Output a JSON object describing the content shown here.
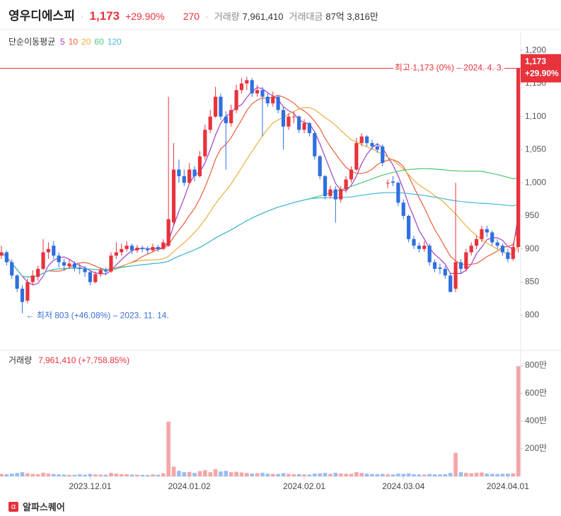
{
  "chart_data": {
    "type": "candlestick",
    "name": "영우디에스피",
    "price": "1,173",
    "change_pct": "+29.90%",
    "change": "270",
    "volume_label": "거래량",
    "volume_text": "7,961,410",
    "value_label": "거래대금",
    "value_text": "87억 3,816만",
    "ma_label": "단순이동평균",
    "ma_periods": [
      5,
      10,
      20,
      60,
      120
    ],
    "ma_colors": [
      "#a040c8",
      "#e8603c",
      "#e8b040",
      "#50c878",
      "#4ab8d8"
    ],
    "up_color": "#e8323c",
    "down_color": "#2f6fe0",
    "up_volume_color": "#f4a5a8",
    "down_volume_color": "#9bbcf2",
    "categories": [
      null,
      null,
      null,
      null,
      null,
      null,
      null,
      null,
      null,
      null,
      null,
      null,
      null,
      null,
      null,
      null,
      null,
      "2023.12.01",
      null,
      null,
      null,
      null,
      null,
      null,
      null,
      null,
      null,
      null,
      null,
      null,
      null,
      null,
      null,
      null,
      null,
      null,
      "2024.01.02",
      null,
      null,
      null,
      null,
      null,
      null,
      null,
      null,
      null,
      null,
      null,
      null,
      null,
      null,
      null,
      null,
      null,
      null,
      null,
      null,
      null,
      "2024.02.01",
      null,
      null,
      null,
      null,
      null,
      null,
      null,
      null,
      null,
      null,
      null,
      null,
      null,
      null,
      null,
      null,
      null,
      null,
      "2024.03.04",
      null,
      null,
      null,
      null,
      null,
      null,
      null,
      null,
      null,
      null,
      null,
      null,
      null,
      null,
      null,
      null,
      null,
      null,
      null,
      "2024.04.01",
      null,
      null
    ],
    "ohlc": [
      [
        890,
        905,
        885,
        895
      ],
      [
        895,
        898,
        875,
        880
      ],
      [
        880,
        884,
        855,
        860
      ],
      [
        860,
        862,
        835,
        840
      ],
      [
        840,
        845,
        803,
        820
      ],
      [
        822,
        855,
        818,
        850
      ],
      [
        850,
        868,
        845,
        860
      ],
      [
        858,
        875,
        852,
        870
      ],
      [
        870,
        915,
        868,
        895
      ],
      [
        895,
        910,
        885,
        900
      ],
      [
        905,
        912,
        885,
        890
      ],
      [
        890,
        895,
        872,
        880
      ],
      [
        880,
        885,
        868,
        875
      ],
      [
        874,
        885,
        870,
        878
      ],
      [
        878,
        882,
        866,
        872
      ],
      [
        872,
        878,
        862,
        870
      ],
      [
        870,
        874,
        858,
        865
      ],
      [
        865,
        868,
        845,
        850
      ],
      [
        850,
        866,
        848,
        862
      ],
      [
        862,
        872,
        858,
        868
      ],
      [
        868,
        872,
        860,
        866
      ],
      [
        866,
        895,
        864,
        890
      ],
      [
        890,
        910,
        885,
        895
      ],
      [
        895,
        908,
        890,
        900
      ],
      [
        900,
        912,
        896,
        905
      ],
      [
        905,
        908,
        892,
        898
      ],
      [
        898,
        906,
        894,
        902
      ],
      [
        902,
        905,
        895,
        900
      ],
      [
        900,
        904,
        892,
        898
      ],
      [
        898,
        908,
        895,
        903
      ],
      [
        903,
        906,
        896,
        900
      ],
      [
        900,
        915,
        898,
        910
      ],
      [
        905,
        1130,
        903,
        945
      ],
      [
        940,
        1060,
        935,
        1020
      ],
      [
        1020,
        1035,
        1000,
        1010
      ],
      [
        1010,
        1020,
        995,
        1000
      ],
      [
        1000,
        1030,
        998,
        1020
      ],
      [
        1020,
        1025,
        1002,
        1010
      ],
      [
        1010,
        1048,
        1008,
        1040
      ],
      [
        1040,
        1088,
        1035,
        1080
      ],
      [
        1080,
        1110,
        1075,
        1100
      ],
      [
        1100,
        1145,
        1098,
        1130
      ],
      [
        1130,
        1135,
        1095,
        1100
      ],
      [
        1100,
        1108,
        1020,
        1090
      ],
      [
        1090,
        1118,
        1085,
        1110
      ],
      [
        1110,
        1148,
        1105,
        1140
      ],
      [
        1140,
        1158,
        1135,
        1150
      ],
      [
        1150,
        1160,
        1140,
        1155
      ],
      [
        1155,
        1158,
        1130,
        1135
      ],
      [
        1135,
        1148,
        1130,
        1140
      ],
      [
        1140,
        1145,
        1070,
        1130
      ],
      [
        1130,
        1135,
        1115,
        1120
      ],
      [
        1120,
        1138,
        1115,
        1130
      ],
      [
        1130,
        1132,
        1105,
        1110
      ],
      [
        1110,
        1115,
        1050,
        1085
      ],
      [
        1085,
        1105,
        1080,
        1100
      ],
      [
        1100,
        1108,
        1090,
        1100
      ],
      [
        1100,
        1102,
        1075,
        1080
      ],
      [
        1080,
        1096,
        1075,
        1090
      ],
      [
        1090,
        1092,
        1070,
        1075
      ],
      [
        1075,
        1078,
        1035,
        1040
      ],
      [
        1040,
        1042,
        1005,
        1010
      ],
      [
        1010,
        1012,
        975,
        980
      ],
      [
        980,
        996,
        976,
        990
      ],
      [
        990,
        995,
        940,
        975
      ],
      [
        975,
        995,
        970,
        990
      ],
      [
        990,
        1010,
        985,
        1005
      ],
      [
        1005,
        1025,
        1000,
        1020
      ],
      [
        1020,
        1068,
        1018,
        1060
      ],
      [
        1060,
        1075,
        1055,
        1070
      ],
      [
        1070,
        1072,
        1055,
        1060
      ],
      [
        1060,
        1065,
        1050,
        1055
      ],
      [
        1055,
        1060,
        1045,
        1050
      ],
      [
        1055,
        1058,
        1025,
        1030
      ],
      [
        1000,
        1005,
        992,
        1000
      ],
      [
        1002,
        1010,
        995,
        1000
      ],
      [
        1000,
        1002,
        965,
        970
      ],
      [
        970,
        975,
        945,
        950
      ],
      [
        950,
        952,
        910,
        915
      ],
      [
        915,
        920,
        900,
        905
      ],
      [
        905,
        910,
        895,
        900
      ],
      [
        900,
        912,
        896,
        905
      ],
      [
        905,
        908,
        875,
        880
      ],
      [
        880,
        884,
        865,
        870
      ],
      [
        872,
        878,
        862,
        870
      ],
      [
        870,
        874,
        855,
        860
      ],
      [
        860,
        864,
        835,
        835
      ],
      [
        840,
        1000,
        835,
        880
      ],
      [
        880,
        885,
        862,
        870
      ],
      [
        870,
        900,
        866,
        895
      ],
      [
        895,
        910,
        890,
        905
      ],
      [
        905,
        920,
        900,
        915
      ],
      [
        915,
        935,
        910,
        930
      ],
      [
        930,
        935,
        918,
        925
      ],
      [
        925,
        928,
        905,
        910
      ],
      [
        910,
        915,
        900,
        905
      ],
      [
        905,
        908,
        890,
        895
      ],
      [
        895,
        900,
        880,
        885
      ],
      [
        885,
        908,
        882,
        903
      ],
      [
        903,
        1173,
        895,
        1173
      ]
    ],
    "ylim": [
      749,
      1228
    ],
    "yticks": [
      800,
      850,
      900,
      950,
      {
        "value": 1000,
        "label": "1,000"
      },
      {
        "value": 1050,
        "label": "1,050"
      },
      {
        "value": 1100,
        "label": "1,100"
      },
      {
        "value": 1150,
        "label": "1,150"
      },
      {
        "value": 1200,
        "label": "1,200"
      }
    ],
    "high_annotation": "최고 1,173 (0%) – 2024. 4. 3.",
    "price_tag": "1,173",
    "price_tag_change": "+29.90%",
    "low_annotation": "← 최저 803 (+46.08%) – 2023. 11. 14.",
    "volume": {
      "label": "거래량",
      "summary": "7,961,410 (+7,758.85%)",
      "values": [
        180000,
        150000,
        200000,
        250000,
        300000,
        220000,
        180000,
        150000,
        260000,
        200000,
        170000,
        140000,
        130000,
        120000,
        110000,
        150000,
        120000,
        180000,
        140000,
        130000,
        120000,
        250000,
        200000,
        160000,
        150000,
        130000,
        120000,
        110000,
        100000,
        140000,
        120000,
        220000,
        3950000,
        700000,
        400000,
        300000,
        320000,
        250000,
        380000,
        450000,
        300000,
        520000,
        350000,
        400000,
        300000,
        330000,
        280000,
        250000,
        200000,
        230000,
        260000,
        200000,
        180000,
        170000,
        230000,
        180000,
        150000,
        160000,
        140000,
        130000,
        200000,
        220000,
        250000,
        180000,
        260000,
        200000,
        190000,
        180000,
        300000,
        250000,
        200000,
        170000,
        160000,
        180000,
        150000,
        140000,
        200000,
        180000,
        220000,
        160000,
        140000,
        130000,
        170000,
        150000,
        140000,
        160000,
        250000,
        1700000,
        300000,
        250000,
        220000,
        260000,
        280000,
        200000,
        180000,
        170000,
        190000,
        200000,
        220000,
        7961410
      ],
      "ylim": [
        0,
        9000000
      ],
      "yticks": [
        {
          "value": 2000000,
          "label": "200만"
        },
        {
          "value": 4000000,
          "label": "400만"
        },
        {
          "value": 6000000,
          "label": "600만"
        },
        {
          "value": 8000000,
          "label": "800만"
        }
      ]
    }
  },
  "brand": "알파스퀘어"
}
